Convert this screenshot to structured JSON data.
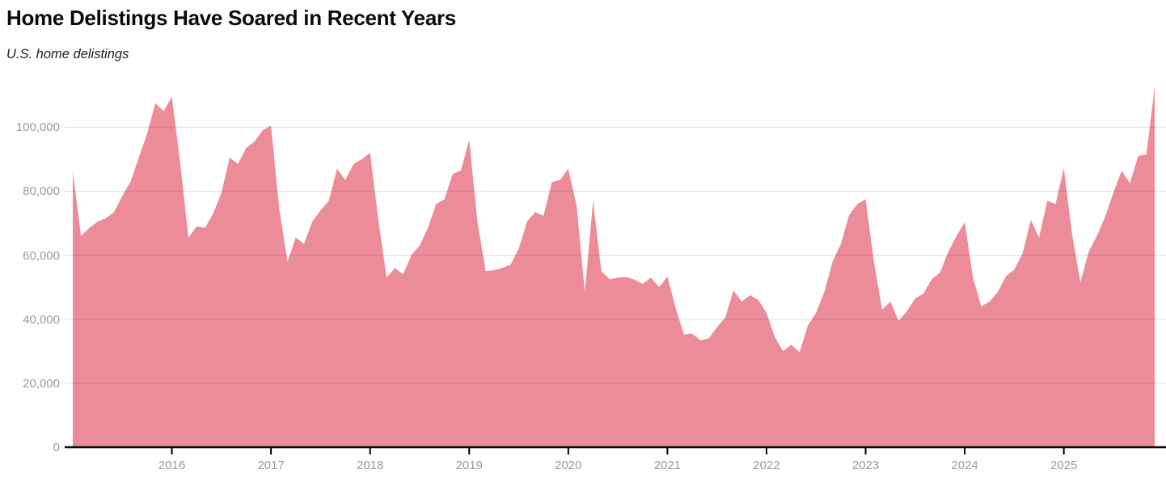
{
  "header": {
    "title": "Home Delistings Have Soared in Recent Years",
    "subtitle": "U.S. home delistings"
  },
  "chart_data": {
    "type": "area",
    "title": "Home Delistings Have Soared in Recent Years",
    "subtitle": "U.S. home delistings",
    "frequency": "monthly",
    "start_month": "2015-01",
    "end_month": "2025-12",
    "x_tick_labels": [
      "2016",
      "2017",
      "2018",
      "2019",
      "2020",
      "2021",
      "2022",
      "2023",
      "2024",
      "2025"
    ],
    "y_tick_labels": [
      "0",
      "20,000",
      "40,000",
      "60,000",
      "80,000",
      "100,000"
    ],
    "y_tick_values": [
      0,
      20000,
      40000,
      60000,
      80000,
      100000
    ],
    "ylim": [
      0,
      114000
    ],
    "grid": "horizontal",
    "legend": "none",
    "series": [
      {
        "name": "U.S. home delistings",
        "values": [
          86000,
          66000,
          68500,
          70500,
          71500,
          73500,
          78500,
          83000,
          90500,
          98000,
          107500,
          105000,
          109500,
          89000,
          65500,
          69000,
          68500,
          73000,
          79500,
          90500,
          88500,
          93500,
          95500,
          99000,
          100500,
          74500,
          58000,
          65500,
          63500,
          70500,
          74000,
          77000,
          87000,
          83500,
          88500,
          90000,
          92000,
          71000,
          53000,
          56000,
          54000,
          60000,
          63000,
          68500,
          76000,
          77500,
          85300,
          86500,
          96000,
          70500,
          55000,
          55300,
          56000,
          57000,
          62000,
          70500,
          73500,
          72300,
          82800,
          83500,
          87000,
          75500,
          48500,
          77000,
          55000,
          52500,
          53000,
          53200,
          52400,
          51000,
          53000,
          50000,
          53300,
          43500,
          35200,
          35500,
          33400,
          34000,
          37500,
          40500,
          49000,
          45500,
          47500,
          46000,
          42000,
          34500,
          30000,
          32000,
          29700,
          38000,
          42000,
          48500,
          58000,
          63500,
          72500,
          76000,
          77500,
          58000,
          43000,
          45500,
          39500,
          42500,
          46500,
          48000,
          52500,
          54500,
          61000,
          66000,
          70300,
          53000,
          44000,
          45500,
          48500,
          53500,
          55500,
          60500,
          71000,
          65500,
          77000,
          76000,
          87200,
          66500,
          51500,
          61000,
          66000,
          72000,
          79500,
          86400,
          82500,
          91000,
          91500,
          112500
        ]
      }
    ],
    "colors": {
      "area_fill": "#EC8C99",
      "gridline": "rgba(0,0,0,0.13)",
      "baseline": "#000000",
      "tick_mark": "#000000",
      "axis_label": "#9b9b9b"
    }
  }
}
